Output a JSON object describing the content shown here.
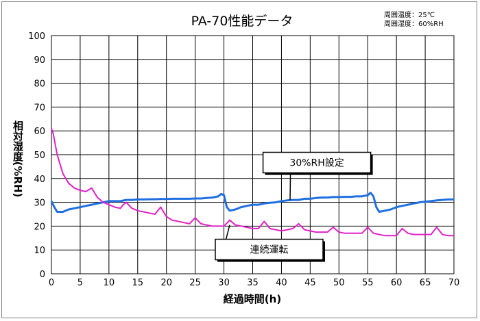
{
  "chart_data": {
    "type": "line",
    "title": "PA-70性能データ",
    "conditions": [
      "周囲温度：25℃",
      "周囲湿度：60%RH"
    ],
    "xlabel": "経過時間(h)",
    "ylabel": "相対湿度(%RH)",
    "xlim": [
      0,
      70
    ],
    "ylim": [
      0,
      100
    ],
    "xticks": [
      0,
      5,
      10,
      15,
      20,
      25,
      30,
      35,
      40,
      45,
      50,
      55,
      60,
      65,
      70
    ],
    "yticks": [
      0,
      10,
      20,
      30,
      40,
      50,
      60,
      70,
      80,
      90,
      100
    ],
    "grid": true,
    "series": [
      {
        "name": "30%RH設定",
        "color": "#1f6fe0",
        "x": [
          0,
          0.5,
          1,
          2,
          3,
          4,
          5,
          6,
          7,
          8,
          9,
          10,
          11,
          12,
          13,
          14,
          15,
          16,
          17,
          18,
          19,
          20,
          21,
          22,
          23,
          24,
          25,
          26,
          27,
          28,
          29,
          29.5,
          30,
          30.5,
          31,
          32,
          33,
          34,
          35,
          36,
          37,
          38,
          39,
          40,
          41,
          42,
          43,
          44,
          45,
          46,
          47,
          48,
          49,
          50,
          51,
          52,
          53,
          54,
          55,
          55.5,
          56,
          56.5,
          57,
          58,
          59,
          60,
          61,
          62,
          63,
          64,
          65,
          66,
          67,
          68,
          69,
          70
        ],
        "values": [
          30.5,
          28,
          26,
          26,
          27,
          27.5,
          28,
          28.5,
          29,
          29.5,
          30,
          30.5,
          30.5,
          30.5,
          31,
          31,
          31.2,
          31.2,
          31.3,
          31.3,
          31.4,
          31.4,
          31.5,
          31.5,
          31.5,
          31.5,
          31.6,
          31.6,
          31.8,
          32,
          32.5,
          33.5,
          33,
          28,
          26.5,
          27,
          28,
          28.5,
          29,
          29,
          29.5,
          29.8,
          30,
          30.5,
          30.8,
          31,
          31,
          31.5,
          31.5,
          31.8,
          32,
          32,
          32.2,
          32.2,
          32.3,
          32.3,
          32.5,
          32.5,
          33,
          34,
          32.5,
          28,
          26,
          26.5,
          27,
          28,
          28.5,
          29,
          29.5,
          30,
          30.3,
          30.5,
          30.8,
          31,
          31.2,
          31.2
        ]
      },
      {
        "name": "連続運転",
        "color": "#e020c8",
        "x": [
          0,
          0.3,
          1,
          2,
          3,
          4,
          5,
          6,
          7,
          8,
          9,
          10,
          11,
          12,
          12.5,
          13,
          14,
          15,
          16,
          17,
          18,
          19,
          20,
          21,
          22,
          23,
          24,
          25,
          26,
          27,
          28,
          29,
          30,
          31,
          32,
          33,
          34,
          35,
          36,
          37,
          38,
          39,
          40,
          41,
          42,
          43,
          44,
          45,
          46,
          47,
          48,
          49,
          50,
          51,
          52,
          53,
          54,
          55,
          56,
          57,
          58,
          59,
          60,
          61,
          62,
          63,
          64,
          65,
          66,
          67,
          68,
          69,
          70
        ],
        "values": [
          61,
          59,
          50,
          42,
          38,
          36,
          35,
          34.5,
          36,
          32,
          30,
          29,
          28,
          27.5,
          29,
          30,
          27.5,
          26.5,
          26,
          25.5,
          25,
          28,
          24,
          22.5,
          22,
          21.5,
          21,
          23.5,
          21,
          20.5,
          20,
          20,
          20,
          22.5,
          20.5,
          20,
          19.5,
          19,
          19,
          22,
          19,
          18.5,
          18,
          18.5,
          19,
          21,
          18.5,
          18,
          17.5,
          17.5,
          17.5,
          19.5,
          17.5,
          17,
          17,
          17,
          17,
          19.5,
          17,
          16.5,
          16,
          16,
          16,
          19,
          17,
          16.5,
          16.5,
          16.5,
          16.5,
          19.5,
          16.5,
          16,
          16
        ]
      }
    ],
    "callouts": [
      {
        "text": "30%RH設定",
        "series": 0
      },
      {
        "text": "連続運転",
        "series": 1
      }
    ]
  }
}
